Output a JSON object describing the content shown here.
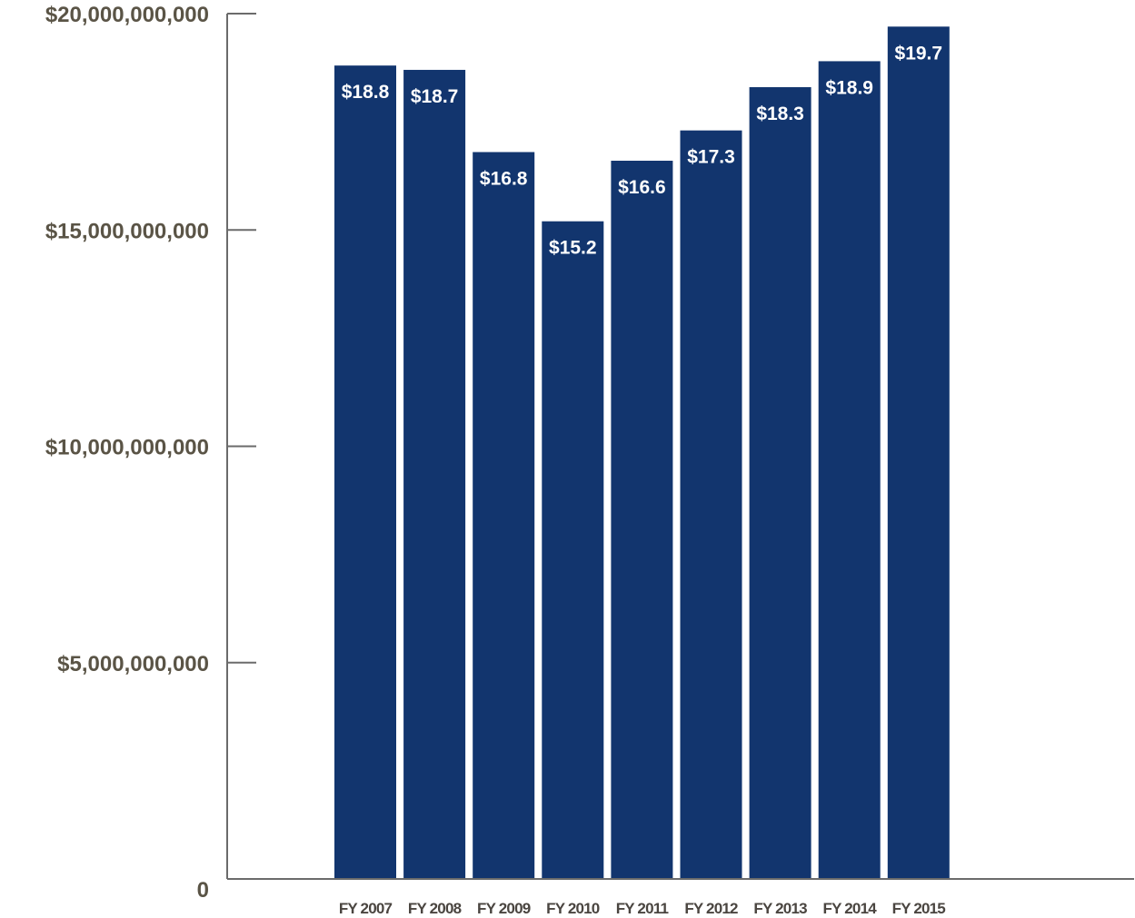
{
  "chart_data": {
    "type": "bar",
    "title": "",
    "xlabel": "",
    "ylabel": "",
    "categories": [
      "FY 2007",
      "FY 2008",
      "FY 2009",
      "FY 2010",
      "FY 2011",
      "FY 2012",
      "FY 2013",
      "FY 2014",
      "FY 2015"
    ],
    "values": [
      18800000000,
      18700000000,
      16800000000,
      15200000000,
      16600000000,
      17300000000,
      18300000000,
      18900000000,
      19700000000
    ],
    "data_labels": [
      "$18.8",
      "$18.7",
      "$16.8",
      "$15.2",
      "$16.6",
      "$17.3",
      "$18.3",
      "$18.9",
      "$19.7"
    ],
    "ylim": [
      0,
      20000000000
    ],
    "yticks": [
      0,
      5000000000,
      10000000000,
      15000000000,
      20000000000
    ],
    "ytick_labels": [
      "0",
      "$5,000,000,000",
      "$10,000,000,000",
      "$15,000,000,000",
      "$20,000,000,000"
    ],
    "grid": false,
    "legend": "none"
  },
  "colors": {
    "bar": "#12356e",
    "bar_label": "#ffffff",
    "axis": "#6b6b6b",
    "tick_label": "#5a5446",
    "category_label": "#4a4540"
  }
}
